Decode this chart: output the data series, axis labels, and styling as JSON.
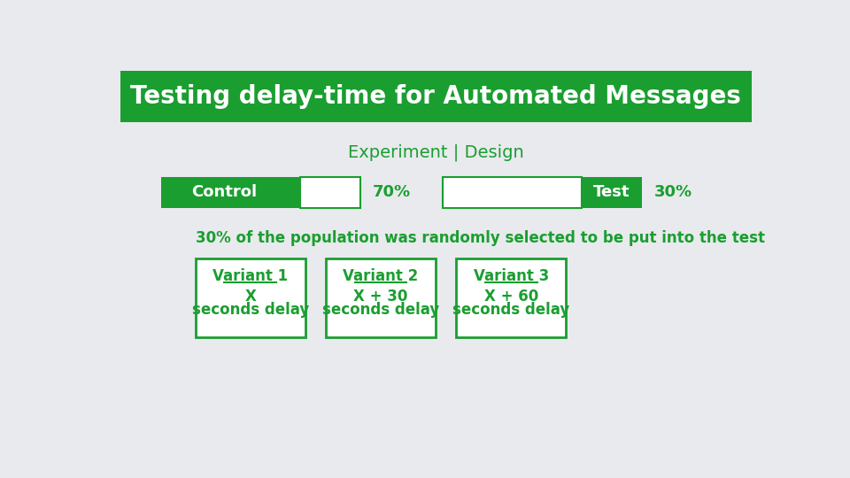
{
  "title": "Testing delay-time for Automated Messages",
  "subtitle": "Experiment | Design",
  "bg_color": "#e8eaed",
  "green_color": "#1a9e30",
  "white_color": "#ffffff",
  "control_label": "Control",
  "control_pct": "70%",
  "test_label": "Test",
  "test_pct": "30%",
  "population_text": "30% of the population was randomly selected to be put into the test",
  "variants": [
    {
      "title": "Variant 1",
      "line1": "X",
      "line2": "seconds delay"
    },
    {
      "title": "Variant 2",
      "line1": "X + 30",
      "line2": "seconds delay"
    },
    {
      "title": "Variant 3",
      "line1": "X + 60",
      "line2": "seconds delay"
    }
  ],
  "title_fontsize": 20,
  "subtitle_fontsize": 14,
  "bar_label_fontsize": 13,
  "pct_fontsize": 13,
  "pop_text_fontsize": 12,
  "variant_title_fontsize": 12,
  "variant_body_fontsize": 12
}
